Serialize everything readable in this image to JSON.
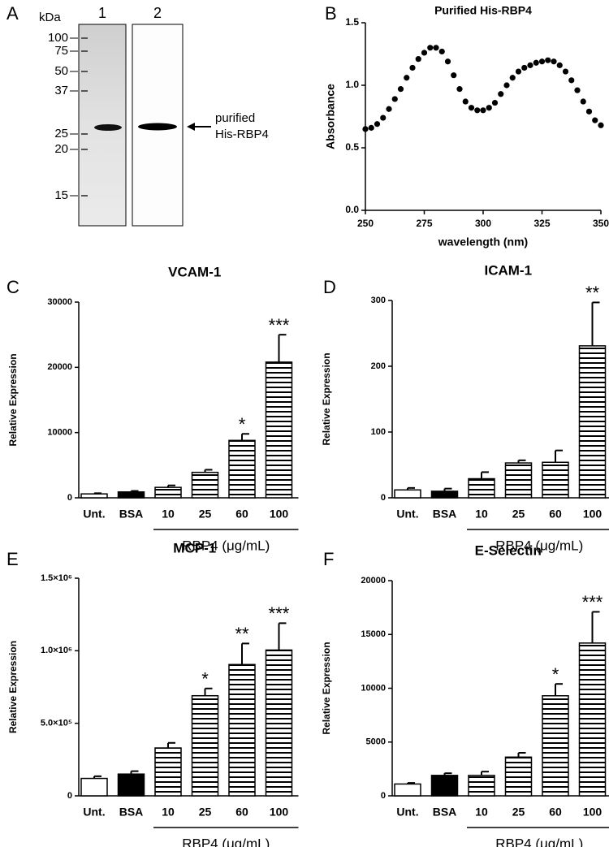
{
  "gel": {
    "panel_label": "A",
    "unit": "kDa",
    "markers": [
      "100",
      "75",
      "50",
      "37",
      "25",
      "20",
      "15"
    ],
    "lanes": [
      "1",
      "2"
    ],
    "band_label": [
      "purified",
      "His-RBP4"
    ]
  },
  "chart_data": [
    {
      "type": "line",
      "panel_label": "B",
      "title": "Purified His-RBP4",
      "x_label": "wavelength (nm)",
      "y_label": "Absorbance",
      "color": "#000000",
      "x": [
        250,
        252.5,
        255,
        257.5,
        260,
        262.5,
        265,
        267.5,
        270,
        272.5,
        275,
        277.5,
        280,
        282.5,
        285,
        287.5,
        290,
        292.5,
        295,
        297.5,
        300,
        302.5,
        305,
        307.5,
        310,
        312.5,
        315,
        317.5,
        320,
        322.5,
        325,
        327.5,
        330,
        332.5,
        335,
        337.5,
        340,
        342.5,
        345,
        347.5,
        350
      ],
      "values": [
        0.65,
        0.66,
        0.69,
        0.74,
        0.81,
        0.89,
        0.97,
        1.06,
        1.14,
        1.21,
        1.26,
        1.3,
        1.3,
        1.27,
        1.19,
        1.08,
        0.97,
        0.87,
        0.82,
        0.8,
        0.8,
        0.82,
        0.86,
        0.93,
        1.0,
        1.06,
        1.11,
        1.14,
        1.16,
        1.18,
        1.19,
        1.2,
        1.19,
        1.16,
        1.11,
        1.04,
        0.96,
        0.87,
        0.79,
        0.72,
        0.68
      ],
      "xlim": [
        250,
        350
      ],
      "xticks": [
        250,
        275,
        300,
        325,
        350
      ],
      "ylim": [
        0,
        1.5
      ],
      "yticks": [
        {
          "value": 0,
          "label": "0.0"
        },
        {
          "value": 0.5,
          "label": "0.5"
        },
        {
          "value": 1,
          "label": "1.0"
        },
        {
          "value": 1.5,
          "label": "1.5"
        }
      ]
    },
    {
      "type": "bar",
      "panel_label": "C",
      "title": "VCAM-1",
      "y_label": "Relative Expression",
      "group_label": "RBP4 (μg/mL)",
      "categories": [
        "Unt.",
        "BSA",
        "10",
        "25",
        "60",
        "100"
      ],
      "values": [
        600,
        900,
        1600,
        3900,
        8800,
        20800
      ],
      "errors": [
        100,
        150,
        300,
        400,
        1000,
        4200
      ],
      "annotations": [
        null,
        null,
        null,
        null,
        "*",
        "***"
      ],
      "fills": [
        "white",
        "black",
        "stripes",
        "stripes",
        "stripes",
        "stripes"
      ],
      "ylim": [
        0,
        30000
      ],
      "yticks": [
        0,
        10000,
        20000,
        30000
      ]
    },
    {
      "type": "bar",
      "panel_label": "D",
      "title": "ICAM-1",
      "y_label": "Relative Expression",
      "group_label": "RBP4 (μg/mL)",
      "categories": [
        "Unt.",
        "BSA",
        "10",
        "25",
        "60",
        "100"
      ],
      "values": [
        12,
        10,
        29,
        53,
        54,
        231
      ],
      "errors": [
        3,
        4,
        10,
        4,
        18,
        66
      ],
      "annotations": [
        null,
        null,
        null,
        null,
        null,
        "**"
      ],
      "fills": [
        "white",
        "black",
        "stripes",
        "stripes",
        "stripes",
        "stripes"
      ],
      "ylim": [
        0,
        300
      ],
      "yticks": [
        0,
        100,
        200,
        300
      ]
    },
    {
      "type": "bar",
      "panel_label": "E",
      "title": "MCP-1",
      "y_label": "Relative Expression",
      "group_label": "RBP4 (μg/mL)",
      "categories": [
        "Unt.",
        "BSA",
        "10",
        "25",
        "60",
        "100"
      ],
      "values": [
        120000,
        150000,
        330000,
        690000,
        905000,
        1005000
      ],
      "errors": [
        15000,
        20000,
        35000,
        50000,
        145000,
        185000
      ],
      "annotations": [
        null,
        null,
        null,
        "*",
        "**",
        "***"
      ],
      "fills": [
        "white",
        "black",
        "stripes",
        "stripes",
        "stripes",
        "stripes"
      ],
      "ylim": [
        0,
        1500000
      ],
      "yticks": [
        0,
        {
          "value": 500000,
          "label": "5.0×10⁵"
        },
        {
          "value": 1000000,
          "label": "1.0×10⁶"
        },
        {
          "value": 1500000,
          "label": "1.5×10⁶"
        }
      ]
    },
    {
      "type": "bar",
      "panel_label": "F",
      "title": "E-Selectin",
      "y_label": "Relative Expression",
      "group_label": "RBP4 (μg/mL)",
      "categories": [
        "Unt.",
        "BSA",
        "10",
        "25",
        "60",
        "100"
      ],
      "values": [
        1100,
        1900,
        1900,
        3600,
        9300,
        14200
      ],
      "errors": [
        100,
        200,
        350,
        400,
        1100,
        2900
      ],
      "annotations": [
        null,
        null,
        null,
        null,
        "*",
        "***"
      ],
      "fills": [
        "white",
        "black",
        "stripes",
        "stripes",
        "stripes",
        "stripes"
      ],
      "ylim": [
        0,
        20000
      ],
      "yticks": [
        0,
        5000,
        10000,
        15000,
        20000
      ]
    }
  ]
}
